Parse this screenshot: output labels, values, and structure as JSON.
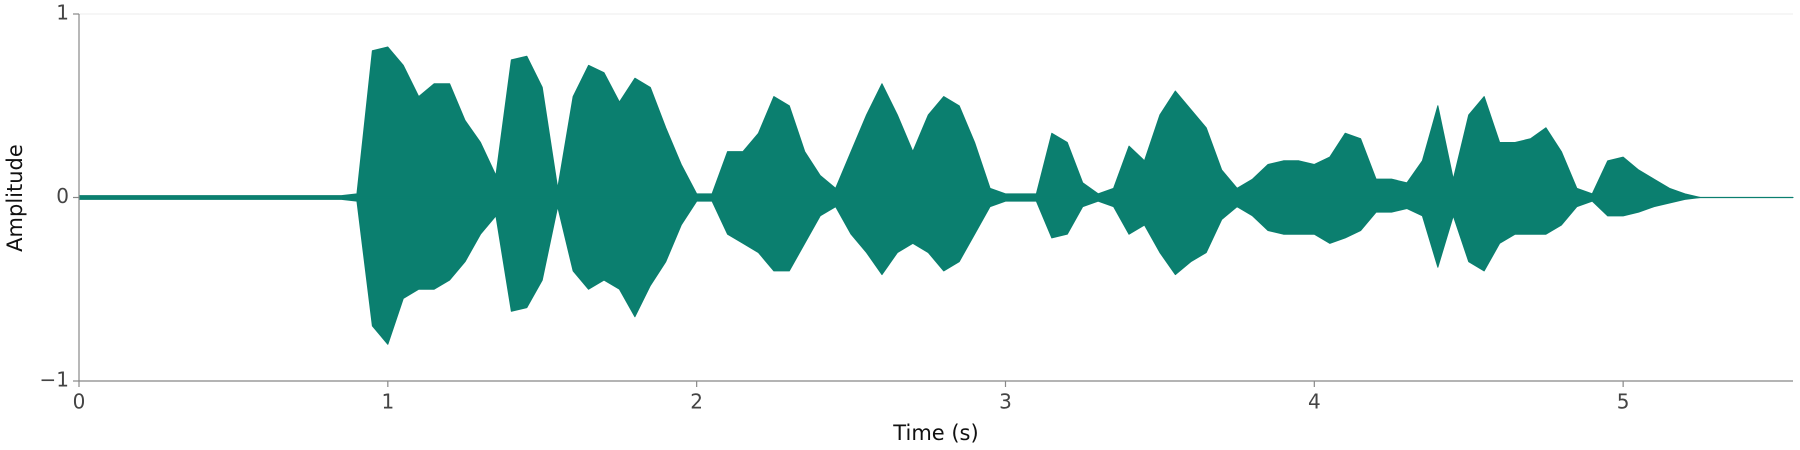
{
  "chart_data": {
    "type": "area",
    "xlabel": "Time (s)",
    "ylabel": "Amplitude",
    "x": [
      0,
      0.05,
      0.1,
      0.15,
      0.2,
      0.25,
      0.3,
      0.35,
      0.4,
      0.45,
      0.5,
      0.55,
      0.6,
      0.65,
      0.7,
      0.75,
      0.8,
      0.85,
      0.9,
      0.95,
      1,
      1.05,
      1.1,
      1.15,
      1.2,
      1.25,
      1.3,
      1.35,
      1.4,
      1.45,
      1.5,
      1.55,
      1.6,
      1.65,
      1.7,
      1.75,
      1.8,
      1.85,
      1.9,
      1.95,
      2,
      2.05,
      2.1,
      2.15,
      2.2,
      2.25,
      2.3,
      2.35,
      2.4,
      2.45,
      2.5,
      2.55,
      2.6,
      2.65,
      2.7,
      2.75,
      2.8,
      2.85,
      2.9,
      2.95,
      3,
      3.05,
      3.1,
      3.15,
      3.2,
      3.25,
      3.3,
      3.35,
      3.4,
      3.45,
      3.5,
      3.55,
      3.6,
      3.65,
      3.7,
      3.75,
      3.8,
      3.85,
      3.9,
      3.95,
      4,
      4.05,
      4.1,
      4.15,
      4.2,
      4.25,
      4.3,
      4.35,
      4.4,
      4.45,
      4.5,
      4.55,
      4.6,
      4.65,
      4.7,
      4.75,
      4.8,
      4.85,
      4.9,
      4.95,
      5,
      5.05,
      5.1,
      5.15,
      5.2,
      5.25,
      5.3,
      5.35,
      5.4,
      5.45,
      5.5,
      5.55
    ],
    "series": [
      {
        "color": "#0b7f6f",
        "values": [
          0.01,
          0.01,
          0.01,
          0.01,
          0.01,
          0.01,
          0.01,
          0.01,
          0.01,
          0.01,
          0.01,
          0.01,
          0.01,
          0.01,
          0.01,
          0.01,
          0.01,
          0.01,
          0.02,
          0.8,
          0.82,
          0.72,
          0.55,
          0.62,
          0.62,
          0.42,
          0.3,
          0.12,
          0.75,
          0.77,
          0.6,
          0.05,
          0.55,
          0.72,
          0.68,
          0.52,
          0.65,
          0.6,
          0.38,
          0.18,
          0.02,
          0.02,
          0.25,
          0.25,
          0.35,
          0.55,
          0.5,
          0.25,
          0.12,
          0.05,
          0.25,
          0.45,
          0.62,
          0.45,
          0.25,
          0.45,
          0.55,
          0.5,
          0.3,
          0.05,
          0.02,
          0.02,
          0.02,
          0.35,
          0.3,
          0.08,
          0.02,
          0.05,
          0.28,
          0.2,
          0.45,
          0.58,
          0.48,
          0.38,
          0.15,
          0.05,
          0.1,
          0.18,
          0.2,
          0.2,
          0.18,
          0.22,
          0.35,
          0.32,
          0.1,
          0.1,
          0.08,
          0.2,
          0.5,
          0.1,
          0.45,
          0.55,
          0.3,
          0.3,
          0.32,
          0.38,
          0.25,
          0.05,
          0.02,
          0.2,
          0.22,
          0.15,
          0.1,
          0.05,
          0.02,
          0,
          0,
          0,
          0,
          0,
          0,
          0
        ]
      },
      {
        "color": "#0b7f6f",
        "values": [
          -0.01,
          -0.01,
          -0.01,
          -0.01,
          -0.01,
          -0.01,
          -0.01,
          -0.01,
          -0.01,
          -0.01,
          -0.01,
          -0.01,
          -0.01,
          -0.01,
          -0.01,
          -0.01,
          -0.01,
          -0.01,
          -0.02,
          -0.7,
          -0.8,
          -0.55,
          -0.5,
          -0.5,
          -0.45,
          -0.35,
          -0.2,
          -0.1,
          -0.62,
          -0.6,
          -0.45,
          -0.05,
          -0.4,
          -0.5,
          -0.45,
          -0.5,
          -0.65,
          -0.48,
          -0.35,
          -0.15,
          -0.02,
          -0.02,
          -0.2,
          -0.25,
          -0.3,
          -0.4,
          -0.4,
          -0.25,
          -0.1,
          -0.05,
          -0.2,
          -0.3,
          -0.42,
          -0.3,
          -0.25,
          -0.3,
          -0.4,
          -0.35,
          -0.2,
          -0.05,
          -0.02,
          -0.02,
          -0.02,
          -0.22,
          -0.2,
          -0.05,
          -0.02,
          -0.05,
          -0.2,
          -0.15,
          -0.3,
          -0.42,
          -0.35,
          -0.3,
          -0.12,
          -0.05,
          -0.1,
          -0.18,
          -0.2,
          -0.2,
          -0.2,
          -0.25,
          -0.22,
          -0.18,
          -0.08,
          -0.08,
          -0.06,
          -0.1,
          -0.38,
          -0.1,
          -0.35,
          -0.4,
          -0.25,
          -0.2,
          -0.2,
          -0.2,
          -0.15,
          -0.05,
          -0.02,
          -0.1,
          -0.1,
          -0.08,
          -0.05,
          -0.03,
          -0.01,
          0,
          0,
          0,
          0,
          0,
          0,
          0
        ]
      }
    ],
    "xlim": [
      0,
      5.55
    ],
    "xticks": [
      0,
      1,
      2,
      3,
      4,
      5
    ],
    "ylim": [
      -1,
      1
    ],
    "yticks": [
      {
        "value": -1,
        "label": "−1"
      },
      0,
      1
    ]
  }
}
